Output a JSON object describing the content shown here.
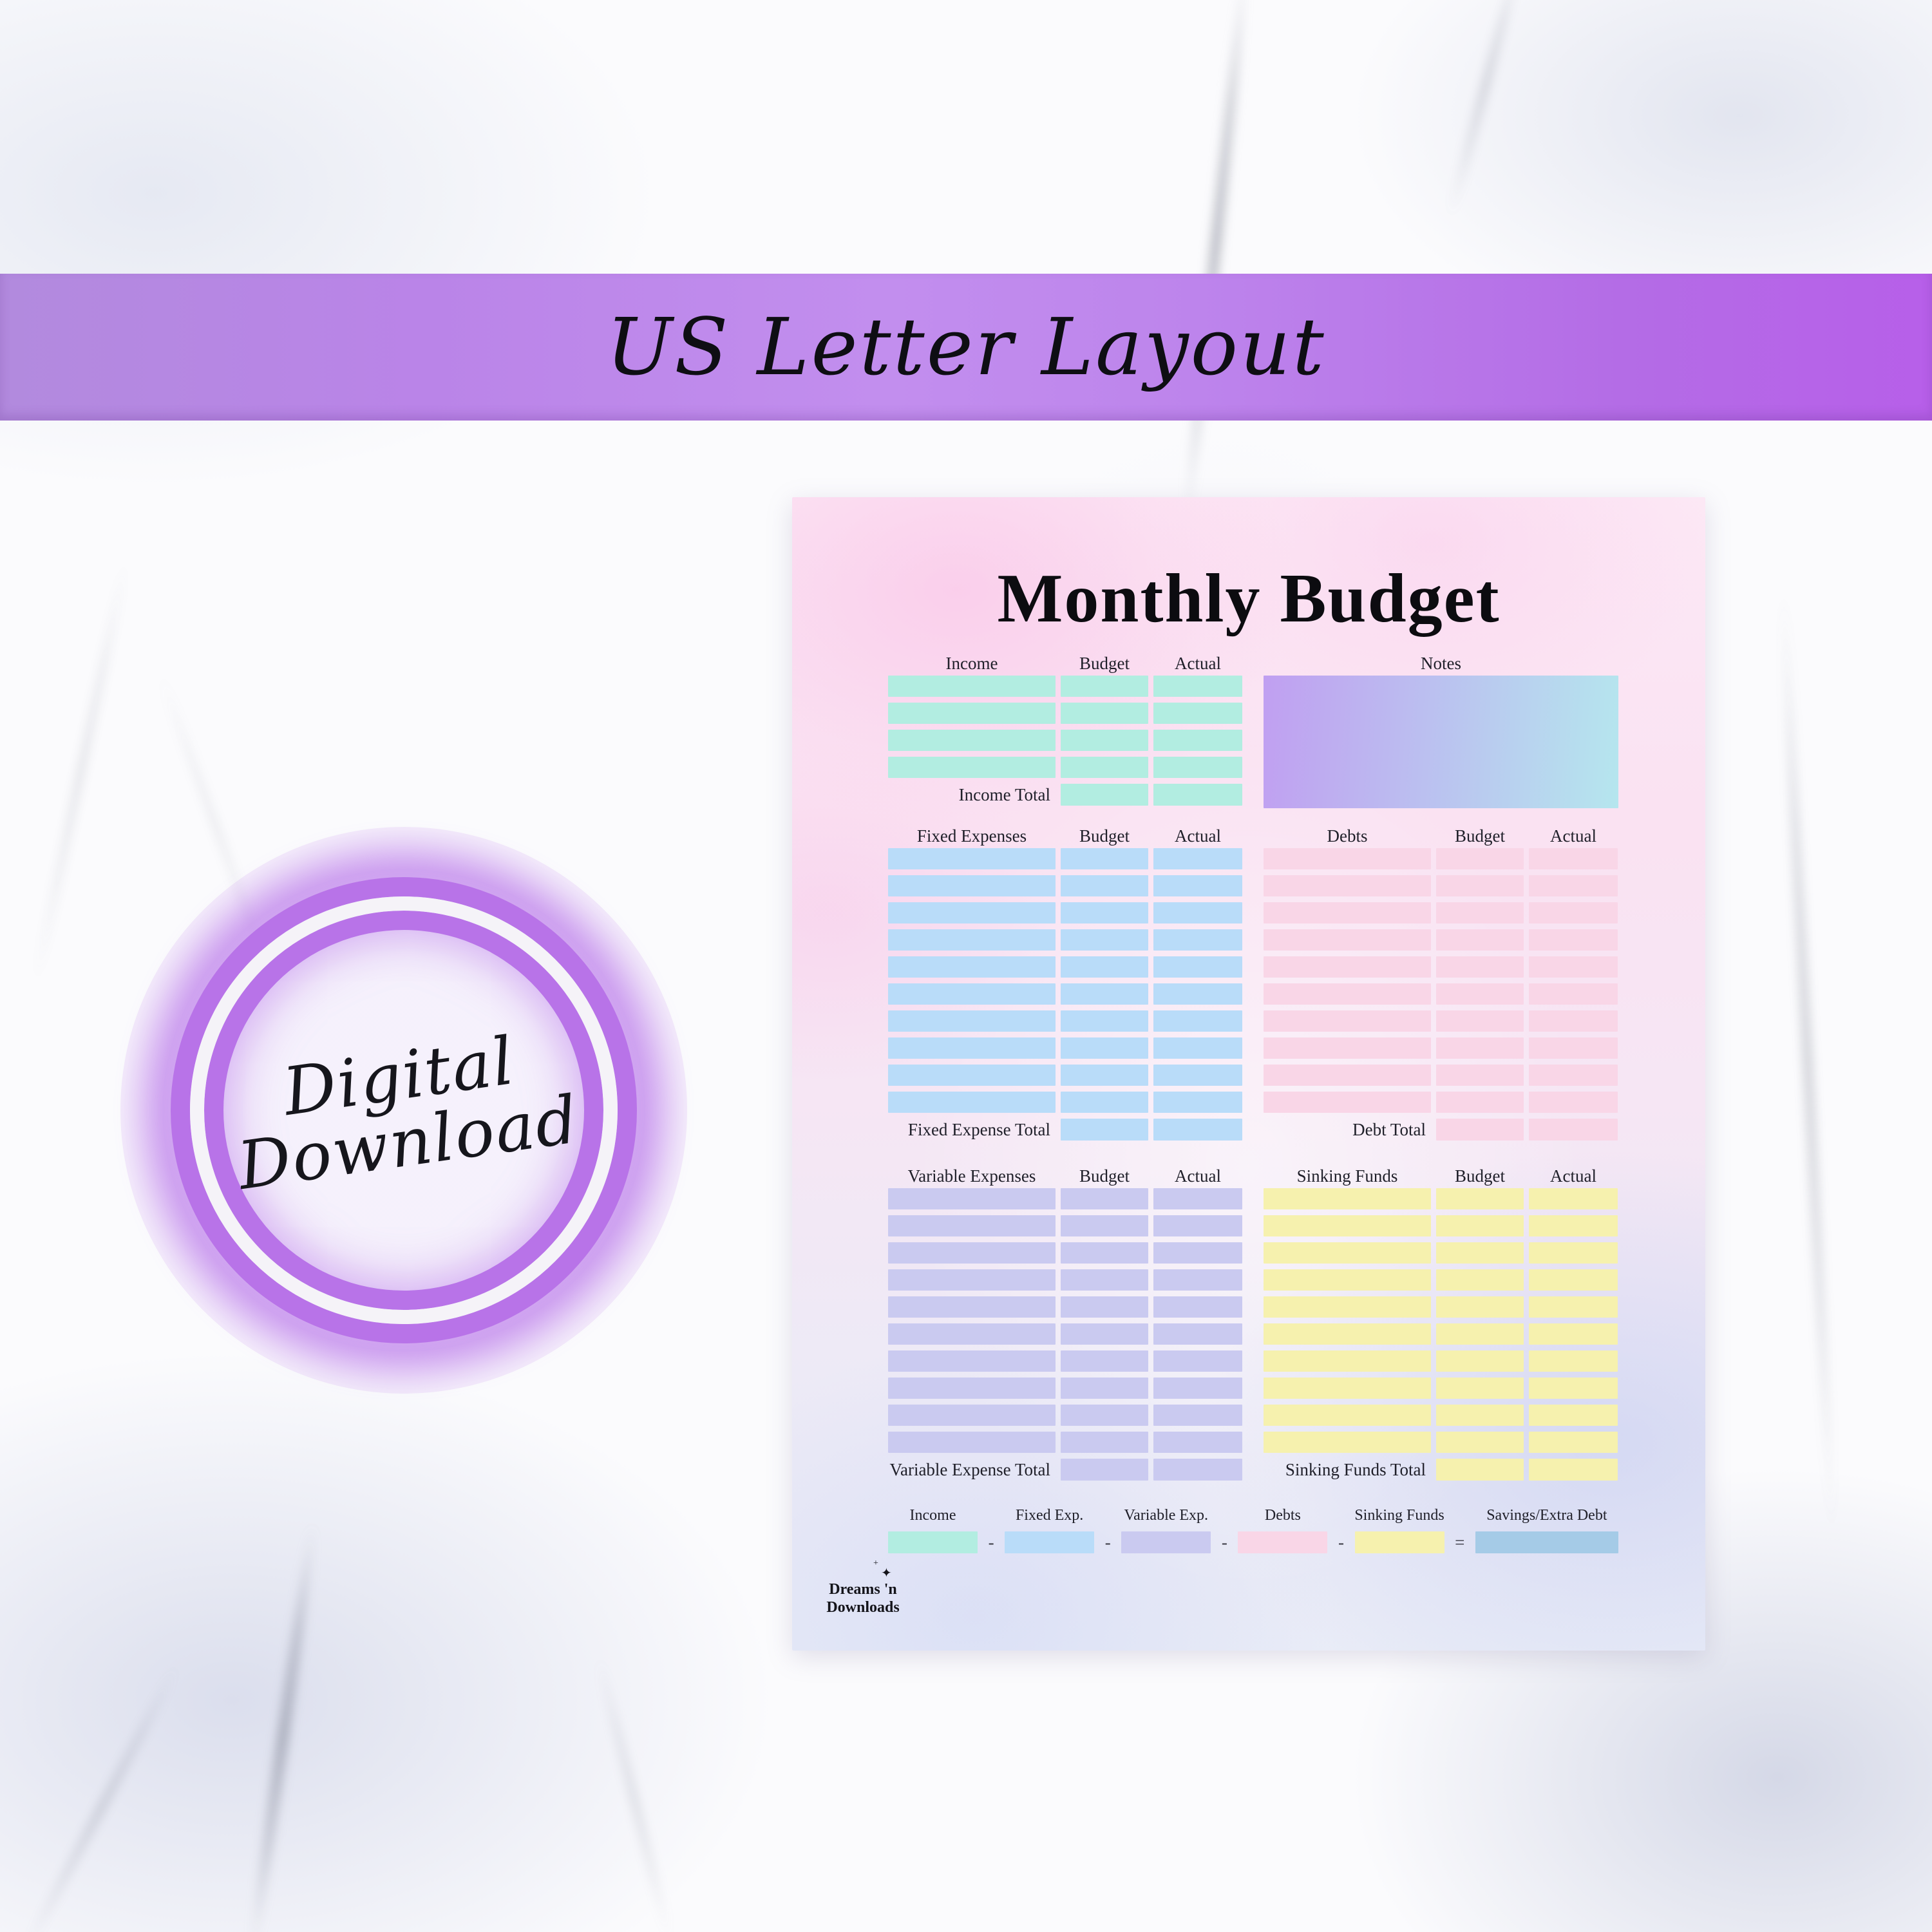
{
  "banner": {
    "text": "US Letter Layout"
  },
  "badge": {
    "line1": "Digital",
    "line2": "Download"
  },
  "page": {
    "title": "Monthly Budget",
    "sections": {
      "income": {
        "columns": [
          "Income",
          "Budget",
          "Actual"
        ],
        "row_count": 4,
        "row_color": "#b2ede1",
        "total_label": "Income Total"
      },
      "notes": {
        "label": "Notes",
        "gradient": [
          "#c09ff1",
          "#b5e6ee"
        ]
      },
      "fixed": {
        "columns": [
          "Fixed Expenses",
          "Budget",
          "Actual"
        ],
        "row_count": 10,
        "row_color": "#b9dcf9",
        "total_label": "Fixed Expense Total"
      },
      "debts": {
        "columns": [
          "Debts",
          "Budget",
          "Actual"
        ],
        "row_count": 10,
        "row_color": "#f9d6e7",
        "total_label": "Debt Total"
      },
      "variable": {
        "columns": [
          "Variable Expenses",
          "Budget",
          "Actual"
        ],
        "row_count": 10,
        "row_color": "#cacaf0",
        "total_label": "Variable Expense Total"
      },
      "sinking": {
        "columns": [
          "Sinking Funds",
          "Budget",
          "Actual"
        ],
        "row_count": 10,
        "row_color": "#f6f1ae",
        "total_label": "Sinking Funds Total"
      }
    },
    "formula": {
      "items": [
        {
          "label": "Income",
          "color": "#b2ede1"
        },
        {
          "label": "Fixed Exp.",
          "color": "#b9dcf9"
        },
        {
          "label": "Variable Exp.",
          "color": "#cacaf0"
        },
        {
          "label": "Debts",
          "color": "#f9d6e7"
        },
        {
          "label": "Sinking Funds",
          "color": "#f6f1ae"
        },
        {
          "label": "Savings/Extra Debt",
          "color": "#a5cbe7"
        }
      ],
      "operators": [
        "-",
        "-",
        "-",
        "-",
        "="
      ]
    },
    "logo": {
      "line1": "Dreams 'n",
      "line2": "Downloads",
      "icon": "sparkle"
    }
  }
}
